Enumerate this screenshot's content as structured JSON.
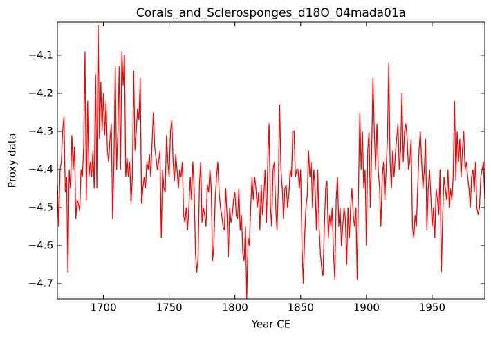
{
  "chart_data": {
    "type": "line",
    "title": "Corals_and_Sclerosponges_d18O_04mada01a",
    "xlabel": "Year CE",
    "ylabel": "Proxy data",
    "color": "#ff0000",
    "xlim": [
      1665,
      1990
    ],
    "xticks": [
      1700,
      1750,
      1800,
      1850,
      1900,
      1950
    ],
    "ylim": [
      -4.74,
      -4.013
    ],
    "yticks": [
      {
        "value": -4.7,
        "label": "−4.7"
      },
      {
        "value": -4.6,
        "label": "−4.6"
      },
      {
        "value": -4.5,
        "label": "−4.5"
      },
      {
        "value": -4.4,
        "label": "−4.4"
      },
      {
        "value": -4.3,
        "label": "−4.3"
      },
      {
        "value": -4.2,
        "label": "−4.2"
      },
      {
        "value": -4.1,
        "label": "−4.1"
      }
    ],
    "x": [
      1665,
      1666,
      1667,
      1668,
      1669,
      1670,
      1671,
      1672,
      1673,
      1674,
      1675,
      1676,
      1677,
      1678,
      1679,
      1680,
      1681,
      1682,
      1683,
      1684,
      1685,
      1686,
      1687,
      1688,
      1689,
      1690,
      1691,
      1692,
      1693,
      1694,
      1695,
      1696,
      1697,
      1698,
      1699,
      1700,
      1701,
      1702,
      1703,
      1704,
      1705,
      1706,
      1707,
      1708,
      1709,
      1710,
      1711,
      1712,
      1713,
      1714,
      1715,
      1716,
      1717,
      1718,
      1719,
      1720,
      1721,
      1722,
      1723,
      1724,
      1725,
      1726,
      1727,
      1728,
      1729,
      1730,
      1731,
      1732,
      1733,
      1734,
      1735,
      1736,
      1737,
      1738,
      1739,
      1740,
      1741,
      1742,
      1743,
      1744,
      1745,
      1746,
      1747,
      1748,
      1749,
      1750,
      1751,
      1752,
      1753,
      1754,
      1755,
      1756,
      1757,
      1758,
      1759,
      1760,
      1761,
      1762,
      1763,
      1764,
      1765,
      1766,
      1767,
      1768,
      1769,
      1770,
      1771,
      1772,
      1773,
      1774,
      1775,
      1776,
      1777,
      1778,
      1779,
      1780,
      1781,
      1782,
      1783,
      1784,
      1785,
      1786,
      1787,
      1788,
      1789,
      1790,
      1791,
      1792,
      1793,
      1794,
      1795,
      1796,
      1797,
      1798,
      1799,
      1800,
      1801,
      1802,
      1803,
      1804,
      1805,
      1806,
      1807,
      1808,
      1809,
      1810,
      1811,
      1812,
      1813,
      1814,
      1815,
      1816,
      1817,
      1818,
      1819,
      1820,
      1821,
      1822,
      1823,
      1824,
      1825,
      1826,
      1827,
      1828,
      1829,
      1830,
      1831,
      1832,
      1833,
      1834,
      1835,
      1836,
      1837,
      1838,
      1839,
      1840,
      1841,
      1842,
      1843,
      1844,
      1845,
      1846,
      1847,
      1848,
      1849,
      1850,
      1851,
      1852,
      1853,
      1854,
      1855,
      1856,
      1857,
      1858,
      1859,
      1860,
      1861,
      1862,
      1863,
      1864,
      1865,
      1866,
      1867,
      1868,
      1869,
      1870,
      1871,
      1872,
      1873,
      1874,
      1875,
      1876,
      1877,
      1878,
      1879,
      1880,
      1881,
      1882,
      1883,
      1884,
      1885,
      1886,
      1887,
      1888,
      1889,
      1890,
      1891,
      1892,
      1893,
      1894,
      1895,
      1896,
      1897,
      1898,
      1899,
      1900,
      1901,
      1902,
      1903,
      1904,
      1905,
      1906,
      1907,
      1908,
      1909,
      1910,
      1911,
      1912,
      1913,
      1914,
      1915,
      1916,
      1917,
      1918,
      1919,
      1920,
      1921,
      1922,
      1923,
      1924,
      1925,
      1926,
      1927,
      1928,
      1929,
      1930,
      1931,
      1932,
      1933,
      1934,
      1935,
      1936,
      1937,
      1938,
      1939,
      1940,
      1941,
      1942,
      1943,
      1944,
      1945,
      1946,
      1947,
      1948,
      1949,
      1950,
      1951,
      1952,
      1953,
      1954,
      1955,
      1956,
      1957,
      1958,
      1959,
      1960,
      1961,
      1962,
      1963,
      1964,
      1965,
      1966,
      1967,
      1968,
      1969,
      1970,
      1971,
      1972,
      1973,
      1974,
      1975,
      1976,
      1977,
      1978,
      1979,
      1980,
      1981,
      1982,
      1983,
      1984,
      1985,
      1986,
      1987,
      1988,
      1989,
      1990
    ],
    "values": [
      -4.44,
      -4.55,
      -4.4,
      -4.38,
      -4.3,
      -4.26,
      -4.46,
      -4.42,
      -4.67,
      -4.4,
      -4.45,
      -4.31,
      -4.4,
      -4.34,
      -4.53,
      -4.48,
      -4.49,
      -4.51,
      -4.4,
      -4.42,
      -4.34,
      -4.09,
      -4.48,
      -4.22,
      -4.42,
      -4.38,
      -4.42,
      -4.35,
      -4.45,
      -4.15,
      -4.45,
      -4.02,
      -4.32,
      -4.17,
      -4.3,
      -4.2,
      -4.31,
      -4.22,
      -4.35,
      -4.38,
      -4.32,
      -4.28,
      -4.53,
      -4.38,
      -4.13,
      -4.4,
      -4.3,
      -4.13,
      -4.4,
      -4.09,
      -4.18,
      -4.1,
      -4.42,
      -4.37,
      -4.42,
      -4.38,
      -4.49,
      -4.42,
      -4.14,
      -4.35,
      -4.3,
      -4.24,
      -4.27,
      -4.16,
      -4.49,
      -4.45,
      -4.42,
      -4.45,
      -4.38,
      -4.4,
      -4.36,
      -4.42,
      -4.33,
      -4.25,
      -4.34,
      -4.37,
      -4.4,
      -4.38,
      -4.35,
      -4.58,
      -4.4,
      -4.45,
      -4.46,
      -4.31,
      -4.38,
      -4.42,
      -4.3,
      -4.27,
      -4.38,
      -4.43,
      -4.36,
      -4.4,
      -4.45,
      -4.4,
      -4.42,
      -4.38,
      -4.52,
      -4.54,
      -4.5,
      -4.56,
      -4.5,
      -4.42,
      -4.48,
      -4.38,
      -4.45,
      -4.62,
      -4.67,
      -4.63,
      -4.44,
      -4.38,
      -4.54,
      -4.5,
      -4.52,
      -4.55,
      -4.44,
      -4.46,
      -4.4,
      -4.45,
      -4.64,
      -4.6,
      -4.48,
      -4.42,
      -4.38,
      -4.46,
      -4.5,
      -4.52,
      -4.55,
      -4.56,
      -4.45,
      -4.52,
      -4.63,
      -4.5,
      -4.54,
      -4.52,
      -4.48,
      -4.46,
      -4.52,
      -4.53,
      -4.45,
      -4.56,
      -4.52,
      -4.62,
      -4.64,
      -4.55,
      -4.74,
      -4.58,
      -4.6,
      -4.5,
      -4.42,
      -4.48,
      -4.42,
      -4.45,
      -4.5,
      -4.46,
      -4.56,
      -4.44,
      -4.52,
      -4.47,
      -4.4,
      -4.54,
      -4.38,
      -4.28,
      -4.5,
      -4.55,
      -4.4,
      -4.38,
      -4.5,
      -4.56,
      -4.45,
      -4.23,
      -4.4,
      -4.45,
      -4.53,
      -4.45,
      -4.44,
      -4.5,
      -4.47,
      -4.4,
      -4.42,
      -4.3,
      -4.3,
      -4.42,
      -4.4,
      -4.4,
      -4.45,
      -4.4,
      -4.6,
      -4.7,
      -4.58,
      -4.5,
      -4.47,
      -4.35,
      -4.42,
      -4.38,
      -4.5,
      -4.4,
      -4.45,
      -4.56,
      -4.4,
      -4.55,
      -4.62,
      -4.66,
      -4.68,
      -4.55,
      -4.45,
      -4.43,
      -4.58,
      -4.52,
      -4.55,
      -4.5,
      -4.62,
      -4.69,
      -4.48,
      -4.42,
      -4.55,
      -4.5,
      -4.6,
      -4.55,
      -4.5,
      -4.53,
      -4.65,
      -4.5,
      -4.58,
      -4.5,
      -4.45,
      -4.52,
      -4.55,
      -4.5,
      -4.69,
      -4.45,
      -4.25,
      -4.4,
      -4.3,
      -4.45,
      -4.4,
      -4.6,
      -4.35,
      -4.3,
      -4.5,
      -4.35,
      -4.16,
      -4.3,
      -4.4,
      -4.28,
      -4.4,
      -4.45,
      -4.55,
      -4.42,
      -4.38,
      -4.48,
      -4.4,
      -4.32,
      -4.12,
      -4.38,
      -4.45,
      -4.35,
      -4.42,
      -4.36,
      -4.32,
      -4.28,
      -4.4,
      -4.35,
      -4.2,
      -4.38,
      -4.3,
      -4.28,
      -4.32,
      -4.4,
      -4.38,
      -4.32,
      -4.55,
      -4.58,
      -4.52,
      -4.55,
      -4.45,
      -4.35,
      -4.3,
      -4.38,
      -4.45,
      -4.4,
      -4.32,
      -4.56,
      -4.45,
      -4.4,
      -4.47,
      -4.55,
      -4.5,
      -4.58,
      -4.45,
      -4.48,
      -4.52,
      -4.4,
      -4.67,
      -4.52,
      -4.42,
      -4.45,
      -4.48,
      -4.4,
      -4.5,
      -4.45,
      -4.48,
      -4.42,
      -4.22,
      -4.43,
      -4.3,
      -4.38,
      -4.32,
      -4.42,
      -4.35,
      -4.3,
      -4.4,
      -4.38,
      -4.42,
      -4.45,
      -4.5,
      -4.42,
      -4.4,
      -4.46,
      -4.38,
      -4.5,
      -4.52,
      -4.5,
      -4.42,
      -4.4,
      -4.38,
      -4.48
    ]
  }
}
